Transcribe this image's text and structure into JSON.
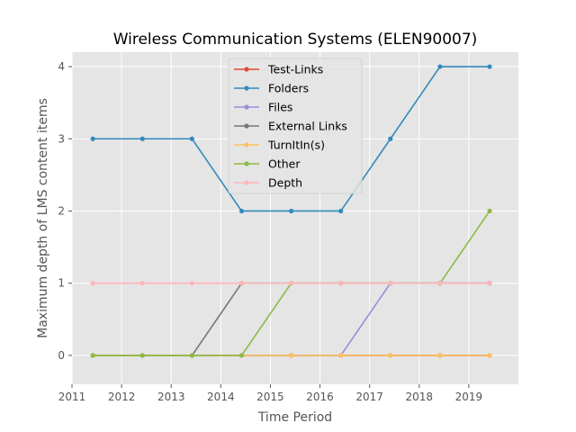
{
  "chart_data": {
    "type": "line",
    "title": "Wireless Communication Systems (ELEN90007)",
    "xlabel": "Time Period",
    "ylabel": "Maximum depth of LMS content items",
    "xlim": [
      2011,
      2020
    ],
    "ylim": [
      -0.4,
      4.2
    ],
    "xticks": [
      "2011",
      "2012",
      "2013",
      "2014",
      "2015",
      "2016",
      "2017",
      "2018",
      "2019"
    ],
    "yticks": [
      "0",
      "1",
      "2",
      "3",
      "4"
    ],
    "grid": true,
    "legend_position": "upper-center",
    "x": [
      2011.42,
      2012.42,
      2013.42,
      2014.42,
      2015.42,
      2016.42,
      2017.42,
      2018.42,
      2019.42
    ],
    "series": [
      {
        "name": "Test-Links",
        "color": "#e24a33",
        "values": [
          0,
          0,
          0,
          0,
          0,
          0,
          0,
          0,
          0
        ]
      },
      {
        "name": "Folders",
        "color": "#348abd",
        "values": [
          3,
          3,
          3,
          2,
          2,
          2,
          3,
          4,
          4
        ]
      },
      {
        "name": "Files",
        "color": "#988ed5",
        "values": [
          0,
          0,
          0,
          0,
          0,
          0,
          1,
          1,
          1
        ]
      },
      {
        "name": "External Links",
        "color": "#777777",
        "values": [
          0,
          0,
          0,
          1,
          1,
          1,
          1,
          1,
          1
        ]
      },
      {
        "name": "TurnItIn(s)",
        "color": "#fbc15e",
        "values": [
          0,
          0,
          0,
          0,
          0,
          0,
          0,
          0,
          0
        ]
      },
      {
        "name": "Other",
        "color": "#8eba42",
        "values": [
          0,
          0,
          0,
          0,
          1,
          1,
          1,
          1,
          2
        ]
      },
      {
        "name": "Depth",
        "color": "#ffb5b8",
        "values": [
          1,
          1,
          1,
          1,
          1,
          1,
          1,
          1,
          1
        ]
      }
    ]
  }
}
